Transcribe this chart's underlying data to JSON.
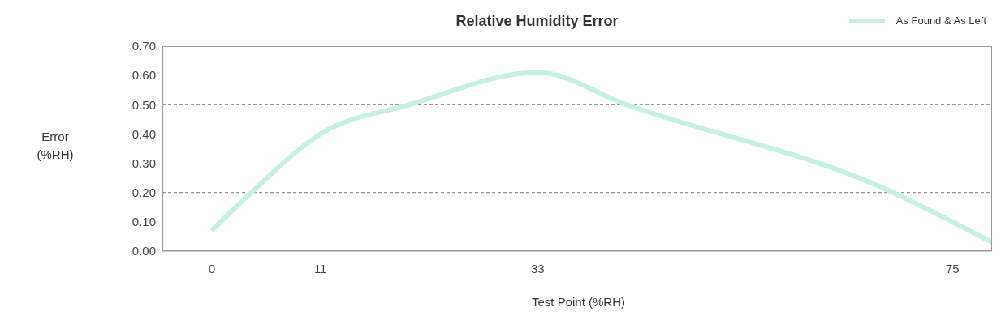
{
  "chart_data": {
    "type": "line",
    "title": "Relative Humidity Error",
    "xlabel": "Test Point  (%RH)",
    "ylabel": "Error\n(%RH)",
    "series": [
      {
        "name": "As Found & As Left",
        "color": "#c8efe4",
        "x": [
          0,
          4,
          11,
          20,
          33,
          42,
          69,
          75,
          79
        ],
        "values": [
          0.07,
          0.2,
          0.4,
          0.5,
          0.61,
          0.5,
          0.2,
          0.1,
          0.03
        ]
      }
    ],
    "xlim": [
      -5,
      79
    ],
    "xticks": [
      0,
      11,
      33,
      75
    ],
    "ylim": [
      0,
      0.7
    ],
    "yticks": [
      {
        "value": 0,
        "label": "0.00"
      },
      {
        "value": 0.1,
        "label": "0.10"
      },
      {
        "value": 0.2,
        "label": "0.20"
      },
      {
        "value": 0.3,
        "label": "0.30"
      },
      {
        "value": 0.4,
        "label": "0.40"
      },
      {
        "value": 0.5,
        "label": "0.50"
      },
      {
        "value": 0.6,
        "label": "0.60"
      },
      {
        "value": 0.7,
        "label": "0.70"
      }
    ],
    "ref_lines": [
      {
        "axis": "y",
        "value": 0.5,
        "color": "#777777",
        "line_style": "dashed"
      },
      {
        "axis": "y",
        "value": 0.2,
        "color": "#777777",
        "line_style": "dashed"
      }
    ],
    "grid": false,
    "legend": "top right",
    "marker": "none",
    "line_style": "solid"
  }
}
